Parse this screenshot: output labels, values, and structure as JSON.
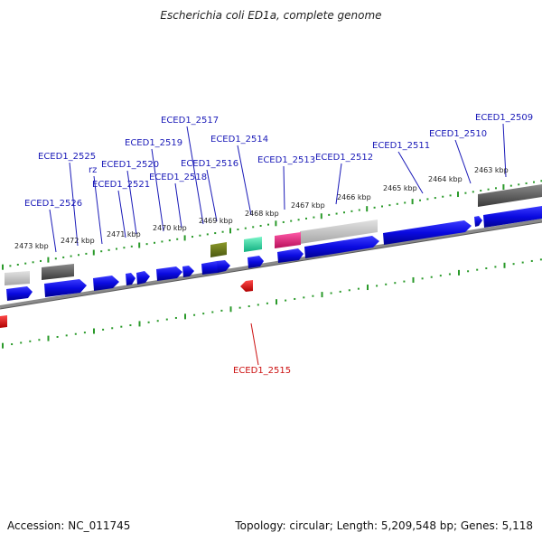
{
  "title": "Escherichia coli ED1a, complete genome",
  "footer": {
    "accession": "Accession: NC_011745",
    "topology": "Topology: circular; Length: 5,209,548 bp; Genes: 5,118"
  },
  "colors": {
    "cds_blue": "#1010e0",
    "label_blue": "#1a1ab8",
    "label_red": "#cc1111",
    "tick_green": "#2a9a2a",
    "backbone_gray": "#7a7a7a",
    "trna_olive": "#6b7a1a",
    "rrna_mint": "#28d8a0",
    "misc_magenta": "#e0207a",
    "pseudo_lightgray": "#c4c4c4",
    "pseudo_darkgray": "#606060",
    "reverse_red": "#ee1010"
  },
  "kbp_labels": [
    "2473 kbp",
    "2472 kbp",
    "2471 kbp",
    "2470 kbp",
    "2469 kbp",
    "2468 kbp",
    "2467 kbp",
    "2466 kbp",
    "2465 kbp",
    "2464 kbp",
    "2463 kbp"
  ],
  "gene_labels": [
    {
      "text": "ECED1_2526",
      "color": "blue"
    },
    {
      "text": "ECED1_2525",
      "color": "blue"
    },
    {
      "text": "rz",
      "color": "blue"
    },
    {
      "text": "ECED1_2521",
      "color": "blue"
    },
    {
      "text": "ECED1_2520",
      "color": "blue"
    },
    {
      "text": "ECED1_2519",
      "color": "blue"
    },
    {
      "text": "ECED1_2518",
      "color": "blue"
    },
    {
      "text": "ECED1_2517",
      "color": "blue"
    },
    {
      "text": "ECED1_2516",
      "color": "blue"
    },
    {
      "text": "ECED1_2514",
      "color": "blue"
    },
    {
      "text": "ECED1_2513",
      "color": "blue"
    },
    {
      "text": "ECED1_2512",
      "color": "blue"
    },
    {
      "text": "ECED1_2511",
      "color": "blue"
    },
    {
      "text": "ECED1_2510",
      "color": "blue"
    },
    {
      "text": "ECED1_2509",
      "color": "blue"
    },
    {
      "text": "ECED1_2515",
      "color": "red"
    }
  ]
}
